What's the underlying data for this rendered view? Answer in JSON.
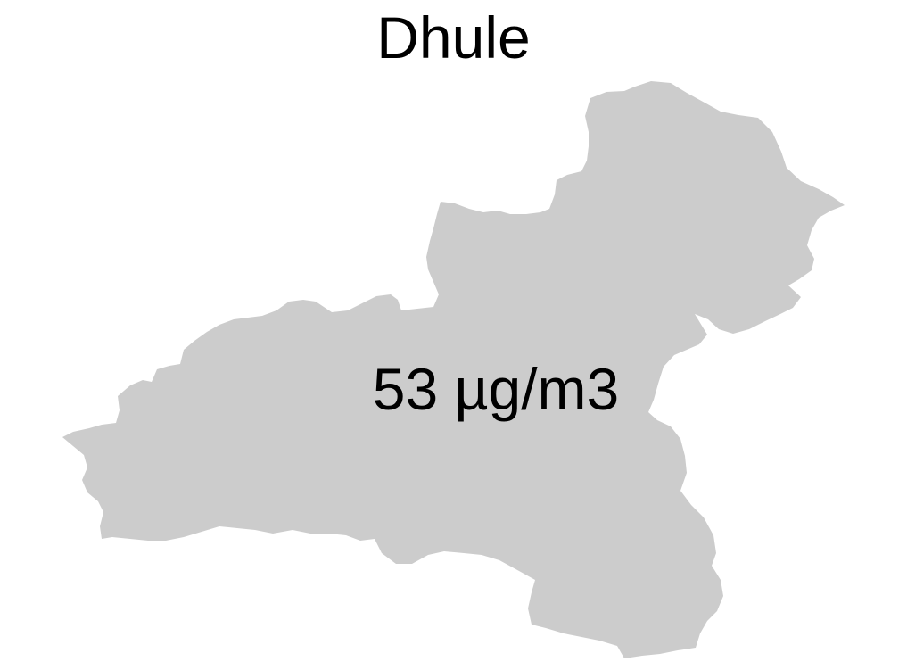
{
  "map": {
    "title": "Dhule",
    "region_value_label": "53 µg/m3",
    "region_fill": "#cccccc",
    "label_color": "#000000",
    "background": "#ffffff"
  }
}
